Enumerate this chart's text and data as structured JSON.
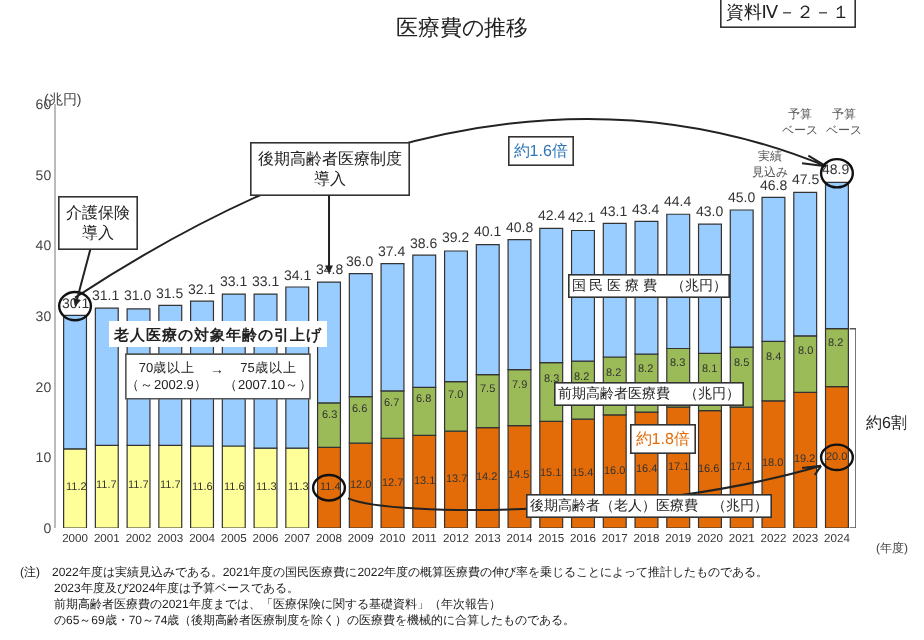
{
  "chart_data": {
    "type": "bar",
    "title": "医療費の推移",
    "xlabel": "(年度)",
    "ylabel": "(兆円)",
    "categories": [
      "2000",
      "2001",
      "2002",
      "2003",
      "2004",
      "2005",
      "2006",
      "2007",
      "2008",
      "2009",
      "2010",
      "2011",
      "2012",
      "2013",
      "2014",
      "2015",
      "2016",
      "2017",
      "2018",
      "2019",
      "2020",
      "2021",
      "2022",
      "2023",
      "2024"
    ],
    "stacked": true,
    "ylim": [
      0,
      60
    ],
    "yticks": [
      0,
      10,
      20,
      30,
      40,
      50,
      60
    ],
    "grid": false,
    "series": [
      {
        "name": "後期高齢者（老人）医療費　（兆円）",
        "colors": [
          "#ffff99",
          "#ffff99",
          "#ffff99",
          "#ffff99",
          "#ffff99",
          "#ffff99",
          "#ffff99",
          "#ffff99",
          "#e36c09",
          "#e36c09",
          "#e36c09",
          "#e36c09",
          "#e36c09",
          "#e36c09",
          "#e36c09",
          "#e36c09",
          "#e36c09",
          "#e36c09",
          "#e36c09",
          "#e36c09",
          "#e36c09",
          "#e36c09",
          "#e36c09",
          "#e36c09",
          "#e36c09"
        ],
        "values": [
          11.2,
          11.7,
          11.7,
          11.7,
          11.6,
          11.6,
          11.3,
          11.3,
          11.4,
          12.0,
          12.7,
          13.1,
          13.7,
          14.2,
          14.5,
          15.1,
          15.4,
          16.0,
          16.4,
          17.1,
          16.6,
          17.1,
          18.0,
          19.2,
          20.0
        ],
        "value_labels": [
          "11.2",
          "11.7",
          "11.7",
          "11.7",
          "11.6",
          "11.6",
          "11.3",
          "11.3",
          "11.4",
          "12.0",
          "12.7",
          "13.1",
          "13.7",
          "14.2",
          "14.5",
          "15.1",
          "15.4",
          "16.0",
          "16.4",
          "17.1",
          "16.6",
          "17.1",
          "18.0",
          "19.2",
          "20.0"
        ]
      },
      {
        "name": "前期高齢者医療費　（兆円）",
        "color": "#9bbb59",
        "values": [
          null,
          null,
          null,
          null,
          null,
          null,
          null,
          null,
          6.3,
          6.6,
          6.7,
          6.8,
          7.0,
          7.5,
          7.9,
          8.3,
          8.2,
          8.2,
          8.2,
          8.3,
          8.1,
          8.5,
          8.4,
          8.0,
          8.2
        ],
        "value_labels": [
          null,
          null,
          null,
          null,
          null,
          null,
          null,
          null,
          "6.3",
          "6.6",
          "6.7",
          "6.8",
          "7.0",
          "7.5",
          "7.9",
          "8.3",
          "8.2",
          "8.2",
          "8.2",
          "8.3",
          "8.1",
          "8.5",
          "8.4",
          "8.0",
          "8.2"
        ]
      },
      {
        "name": "国 民 医 療 費　（兆円）",
        "color": "#99ccff",
        "values": [
          18.9,
          19.4,
          19.3,
          19.8,
          20.5,
          21.5,
          21.8,
          22.8,
          17.1,
          17.4,
          18.0,
          18.7,
          18.5,
          18.4,
          18.4,
          19.0,
          18.5,
          18.9,
          18.8,
          19.0,
          18.3,
          19.4,
          20.4,
          20.3,
          20.7
        ]
      }
    ],
    "totals": [
      "30.1",
      "31.1",
      "31.0",
      "31.5",
      "32.1",
      "33.1",
      "33.1",
      "34.1",
      "34.8",
      "36.0",
      "37.4",
      "38.6",
      "39.2",
      "40.1",
      "40.8",
      "42.4",
      "42.1",
      "43.1",
      "43.4",
      "44.4",
      "43.0",
      "45.0",
      "46.8",
      "47.5",
      "48.9"
    ],
    "annotations": [
      {
        "text": "介護保険導入",
        "x": "2000",
        "y": 30.1
      },
      {
        "text": "後期高齢者医療制度導入",
        "x": "2008",
        "y": 34.8
      },
      "約1.6倍",
      "約1.8倍",
      "約6割",
      "老人医療の対象年齢の引上げ",
      "70歳以上（～2002.9）",
      "→",
      "75歳以上（2007.10～）",
      "実績見込み",
      "予算ベース",
      "予算ベース",
      "資料Ⅳ－２－１",
      "(注)　2022年度は実績見込みである。2021年度の国民医療費に2022年度の概算医療費の伸び率を乗じることによって推計したものである。",
      "2023年度及び2024年度は予算ベースである。",
      "前期高齢者医療費の2021年度までは、「医療保険に関する基礎資料」（年次報告）の65～69歳・70～74歳（後期高齢者医療制度を除く）の医療費を機械的に合算したものである。"
    ]
  }
}
